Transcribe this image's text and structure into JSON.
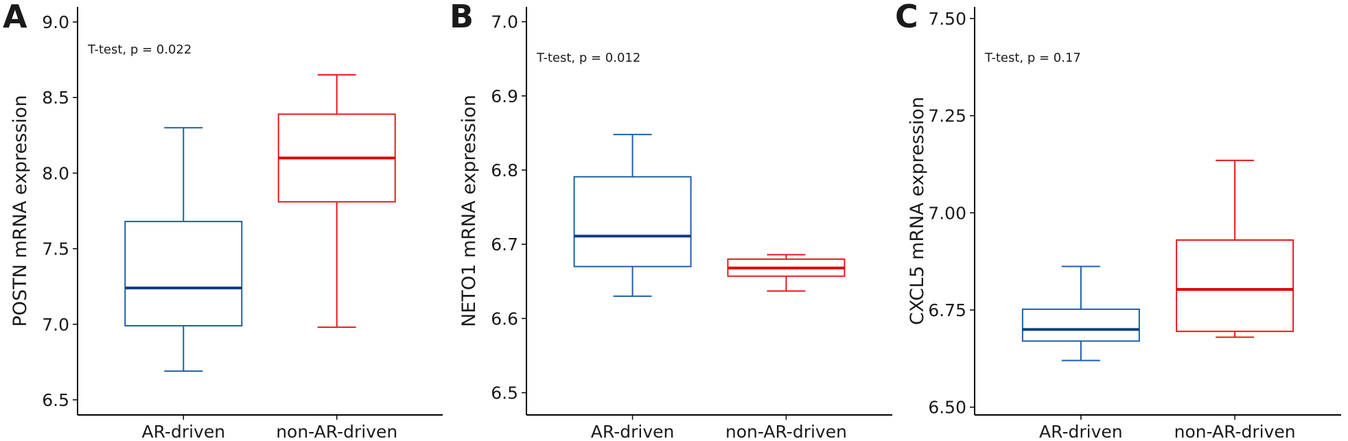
{
  "chart_data": [
    {
      "type": "box",
      "panel_label": "A",
      "annotation": "T-test, p = 0.022",
      "ylabel": "POSTN mRNA expression",
      "xlabel": "",
      "ylim": [
        6.4,
        9.1
      ],
      "yticks": [
        "6.5",
        "7.0",
        "7.5",
        "8.0",
        "8.5",
        "9.0"
      ],
      "categories": [
        "AR-driven",
        "non-AR-driven"
      ],
      "boxes": [
        {
          "category": "AR-driven",
          "color": "#1f5fa6",
          "min": 6.69,
          "q1": 6.99,
          "median": 7.24,
          "q3": 7.68,
          "max": 8.3
        },
        {
          "category": "non-AR-driven",
          "color": "#e8191c",
          "min": 6.98,
          "q1": 7.81,
          "median": 8.1,
          "q3": 8.39,
          "max": 8.65
        }
      ],
      "grid": false
    },
    {
      "type": "box",
      "panel_label": "B",
      "annotation": "T-test, p = 0.012",
      "ylabel": "NETO1 mRNA expression",
      "xlabel": "",
      "ylim": [
        6.47,
        7.02
      ],
      "yticks": [
        "6.5",
        "6.6",
        "6.7",
        "6.8",
        "6.9",
        "7.0"
      ],
      "categories": [
        "AR-driven",
        "non-AR-driven"
      ],
      "boxes": [
        {
          "category": "AR-driven",
          "color": "#1f5fa6",
          "min": 6.63,
          "q1": 6.67,
          "median": 6.711,
          "q3": 6.791,
          "max": 6.848
        },
        {
          "category": "non-AR-driven",
          "color": "#e8191c",
          "min": 6.637,
          "q1": 6.657,
          "median": 6.668,
          "q3": 6.68,
          "max": 6.686
        }
      ],
      "grid": false
    },
    {
      "type": "box",
      "panel_label": "C",
      "annotation": "T-test, p = 0.17",
      "ylabel": "CXCL5 mRNA expression",
      "xlabel": "",
      "ylim": [
        6.48,
        7.53
      ],
      "yticks": [
        "6.50",
        "6.75",
        "7.00",
        "7.25",
        "7.50"
      ],
      "categories": [
        "AR-driven",
        "non-AR-driven"
      ],
      "boxes": [
        {
          "category": "AR-driven",
          "color": "#1f5fa6",
          "min": 6.62,
          "q1": 6.67,
          "median": 6.7,
          "q3": 6.752,
          "max": 6.862
        },
        {
          "category": "non-AR-driven",
          "color": "#e8191c",
          "min": 6.68,
          "q1": 6.695,
          "median": 6.803,
          "q3": 6.93,
          "max": 7.135
        }
      ],
      "grid": false
    }
  ]
}
